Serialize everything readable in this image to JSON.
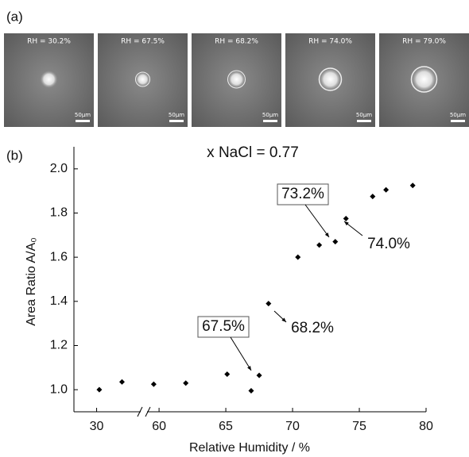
{
  "panel_a": {
    "label": "(a)",
    "images": [
      {
        "caption": "RH = 30.2%",
        "scale_bar": "50μm"
      },
      {
        "caption": "RH = 67.5%",
        "scale_bar": "50μm"
      },
      {
        "caption": "RH = 68.2%",
        "scale_bar": "50μm"
      },
      {
        "caption": "RH = 74.0%",
        "scale_bar": "50μm"
      },
      {
        "caption": "RH = 79.0%",
        "scale_bar": "50μm"
      }
    ]
  },
  "chart_data": {
    "type": "scatter",
    "panel_label": "(b)",
    "title": "x NaCl = 0.77",
    "x_label": "Relative Humidity / %",
    "y_label": "Area Ratio A/A₀",
    "x": [
      30.2,
      31.9,
      59.6,
      62.0,
      65.1,
      66.9,
      67.5,
      68.2,
      70.4,
      72.0,
      73.2,
      74.0,
      76.0,
      77.0,
      79.0
    ],
    "values": [
      1.0,
      1.035,
      1.025,
      1.03,
      1.07,
      0.995,
      1.065,
      1.39,
      1.6,
      1.655,
      1.67,
      1.775,
      1.875,
      1.905,
      1.925
    ],
    "color": "#000000",
    "xlim": [
      [
        28.3,
        33.3
      ],
      [
        59.1,
        80
      ]
    ],
    "xticks": [
      30,
      60,
      65,
      70,
      75,
      80
    ],
    "ylim": [
      0.9,
      2.1
    ],
    "yticks": [
      {
        "value": 1,
        "label": "1.0"
      },
      1.2,
      1.4,
      1.6,
      1.8,
      {
        "value": 2,
        "label": "2.0"
      }
    ],
    "annotations": [
      "67.5%",
      "68.2%",
      "73.2%",
      "74.0%"
    ]
  }
}
